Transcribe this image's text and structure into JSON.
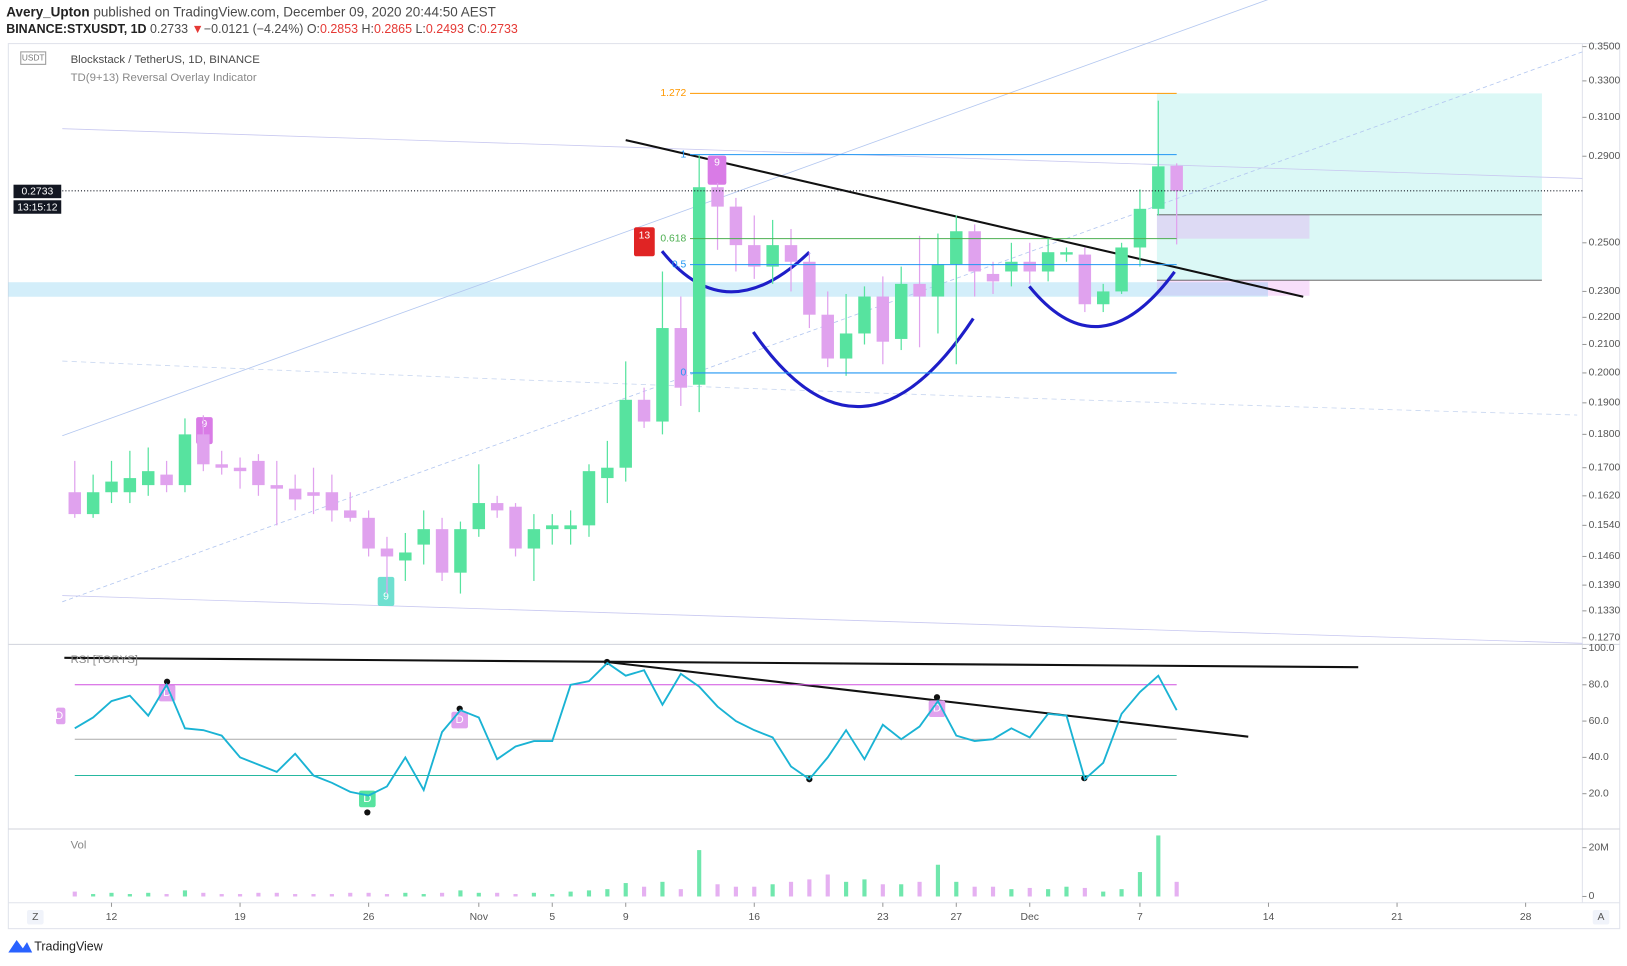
{
  "header": {
    "author": "Avery_Upton",
    "published": "published on TradingView.com, December 09, 2020 20:44:50 AEST",
    "symbol": "BINANCE:STXUSDT, 1D",
    "last": "0.2733",
    "arrow": "▼",
    "change": "−0.0121 (−4.24%)",
    "ohlc": [
      {
        "key": "O:",
        "val": "0.2853"
      },
      {
        "key": "H:",
        "val": "0.2865"
      },
      {
        "key": "L:",
        "val": "0.2493"
      },
      {
        "key": "C:",
        "val": "0.2733"
      }
    ]
  },
  "td_marks": [
    "9",
    "9",
    "13",
    "9"
  ],
  "rsi_marks": [
    "D",
    "D",
    "D",
    "D",
    "D"
  ],
  "footer": {
    "brand": "TradingView",
    "left_button": "Z",
    "right_button": "A"
  },
  "chart_data": [
    {
      "type": "candlestick",
      "title": "Blockstack / TetherUS, 1D, BINANCE",
      "subtitle": "TD(9+13) Reversal Overlay Indicator",
      "unit": "USDT",
      "log": true,
      "up_color": "#57e39f",
      "down_color": "#e0a2ee",
      "open": [
        0.163,
        0.157,
        0.163,
        0.163,
        0.165,
        0.168,
        0.165,
        0.18,
        0.171,
        0.17,
        0.172,
        0.165,
        0.164,
        0.163,
        0.163,
        0.158,
        0.156,
        0.148,
        0.145,
        0.149,
        0.153,
        0.142,
        0.153,
        0.16,
        0.159,
        0.148,
        0.153,
        0.153,
        0.154,
        0.167,
        0.17,
        0.191,
        0.184,
        0.216,
        0.196,
        0.275,
        0.266,
        0.249,
        0.24,
        0.249,
        0.242,
        0.221,
        0.205,
        0.214,
        0.228,
        0.212,
        0.233,
        0.228,
        0.241,
        0.255,
        0.237,
        0.238,
        0.242,
        0.238,
        0.245,
        0.245,
        0.225,
        0.23,
        0.248,
        0.265,
        0.2853
      ],
      "high": [
        0.172,
        0.168,
        0.172,
        0.175,
        0.176,
        0.172,
        0.185,
        0.186,
        0.175,
        0.173,
        0.174,
        0.172,
        0.168,
        0.17,
        0.168,
        0.163,
        0.158,
        0.151,
        0.152,
        0.158,
        0.156,
        0.155,
        0.171,
        0.162,
        0.16,
        0.157,
        0.157,
        0.158,
        0.171,
        0.178,
        0.204,
        0.195,
        0.238,
        0.228,
        0.291,
        0.277,
        0.27,
        0.262,
        0.26,
        0.256,
        0.246,
        0.23,
        0.229,
        0.232,
        0.236,
        0.24,
        0.253,
        0.254,
        0.262,
        0.258,
        0.242,
        0.25,
        0.25,
        0.252,
        0.248,
        0.248,
        0.233,
        0.25,
        0.274,
        0.319,
        0.2865
      ],
      "low": [
        0.156,
        0.156,
        0.16,
        0.16,
        0.162,
        0.163,
        0.163,
        0.169,
        0.168,
        0.164,
        0.162,
        0.154,
        0.158,
        0.157,
        0.155,
        0.155,
        0.146,
        0.137,
        0.14,
        0.144,
        0.14,
        0.137,
        0.151,
        0.156,
        0.146,
        0.14,
        0.149,
        0.149,
        0.151,
        0.16,
        0.166,
        0.182,
        0.18,
        0.189,
        0.187,
        0.247,
        0.238,
        0.235,
        0.233,
        0.23,
        0.216,
        0.202,
        0.199,
        0.21,
        0.203,
        0.208,
        0.209,
        0.214,
        0.203,
        0.228,
        0.229,
        0.232,
        0.233,
        0.234,
        0.242,
        0.222,
        0.222,
        0.229,
        0.24,
        0.262,
        0.2493
      ],
      "close": [
        0.157,
        0.163,
        0.166,
        0.167,
        0.169,
        0.165,
        0.18,
        0.171,
        0.17,
        0.169,
        0.165,
        0.164,
        0.161,
        0.162,
        0.158,
        0.156,
        0.148,
        0.146,
        0.147,
        0.153,
        0.142,
        0.153,
        0.16,
        0.158,
        0.148,
        0.153,
        0.154,
        0.154,
        0.169,
        0.17,
        0.191,
        0.184,
        0.216,
        0.195,
        0.275,
        0.266,
        0.249,
        0.24,
        0.249,
        0.242,
        0.221,
        0.205,
        0.214,
        0.228,
        0.211,
        0.233,
        0.228,
        0.241,
        0.255,
        0.238,
        0.234,
        0.242,
        0.238,
        0.246,
        0.246,
        0.225,
        0.23,
        0.248,
        0.265,
        0.285,
        0.2733
      ],
      "countdown": "13:15:12",
      "ylim": [
        0.1258,
        0.3518
      ],
      "yticks": [
        {
          "value": 0.35,
          "label": "0.3500"
        },
        {
          "value": 0.33,
          "label": "0.3300"
        },
        {
          "value": 0.31,
          "label": "0.3100"
        },
        {
          "value": 0.29,
          "label": "0.2900"
        },
        {
          "value": 0.25,
          "label": "0.2500"
        },
        {
          "value": 0.23,
          "label": "0.2300"
        },
        {
          "value": 0.22,
          "label": "0.2200"
        },
        {
          "value": 0.21,
          "label": "0.2100"
        },
        {
          "value": 0.2,
          "label": "0.2000"
        },
        {
          "value": 0.19,
          "label": "0.1900"
        },
        {
          "value": 0.18,
          "label": "0.1800"
        },
        {
          "value": 0.17,
          "label": "0.1700"
        },
        {
          "value": 0.162,
          "label": "0.1620"
        },
        {
          "value": 0.154,
          "label": "0.1540"
        },
        {
          "value": 0.146,
          "label": "0.1460"
        },
        {
          "value": 0.139,
          "label": "0.1390"
        },
        {
          "value": 0.133,
          "label": "0.1330"
        },
        {
          "value": 0.127,
          "label": "0.1270"
        }
      ],
      "xlim": [
        -0.68,
        82.09
      ],
      "xticks": [
        {
          "value": 2,
          "label": "12"
        },
        {
          "value": 9,
          "label": "19"
        },
        {
          "value": 16,
          "label": "26"
        },
        {
          "value": 22,
          "label": "Nov"
        },
        {
          "value": 26,
          "label": "5"
        },
        {
          "value": 30,
          "label": "9"
        },
        {
          "value": 37,
          "label": "16"
        },
        {
          "value": 44,
          "label": "23"
        },
        {
          "value": 48,
          "label": "27"
        },
        {
          "value": 52,
          "label": "Dec"
        },
        {
          "value": 58,
          "label": "7"
        },
        {
          "value": 65,
          "label": "14"
        },
        {
          "value": 72,
          "label": "21"
        },
        {
          "value": 79,
          "label": "28"
        }
      ],
      "fib": [
        {
          "label": "1.272",
          "value": 0.323,
          "color": "#ff9800"
        },
        {
          "label": "1",
          "value": 0.2908,
          "color": "#2196f3"
        },
        {
          "label": "0.618",
          "value": 0.2518,
          "color": "#4caf50"
        },
        {
          "label": "0.5",
          "value": 0.2408,
          "color": "#2196f3"
        },
        {
          "label": "0",
          "value": 0.2,
          "color": "#2196f3"
        }
      ]
    },
    {
      "type": "line",
      "title": "RSI [TORYS]",
      "color": "#1ab3d4",
      "values": [
        56,
        62,
        71,
        74,
        63,
        80,
        56,
        55,
        52,
        40,
        36,
        32,
        42,
        30,
        26,
        21,
        19,
        24,
        40,
        22,
        54,
        66,
        62,
        39,
        46,
        49,
        49,
        80,
        82,
        92,
        85,
        88,
        69,
        86,
        79,
        68,
        60,
        55,
        51,
        35,
        28,
        40,
        55,
        39,
        58,
        50,
        57,
        71,
        52,
        49,
        50,
        56,
        51,
        64,
        63,
        28,
        37,
        64,
        76,
        85,
        66
      ],
      "levels": [
        80,
        50,
        30
      ],
      "level_colors": [
        "#d050e0",
        "#aaaaaa",
        "#26b8a0"
      ],
      "ylim": [
        1.1,
        101.7
      ],
      "yticks": [
        {
          "value": 100,
          "label": "100.0"
        },
        {
          "value": 80,
          "label": "80.0"
        },
        {
          "value": 60,
          "label": "60.0"
        },
        {
          "value": 40,
          "label": "40.0"
        },
        {
          "value": 20,
          "label": "20.0"
        }
      ]
    },
    {
      "type": "bar",
      "title": "Vol",
      "values": [
        2000000,
        1000000,
        1500000,
        1000000,
        1500000,
        1000000,
        2500000,
        1500000,
        1000000,
        1000000,
        1500000,
        1500000,
        1000000,
        1000000,
        1000000,
        1500000,
        1500000,
        1000000,
        1500000,
        1000000,
        1500000,
        2500000,
        1500000,
        1500000,
        1000000,
        1500000,
        1000000,
        2000000,
        2500000,
        3000000,
        5500000,
        4000000,
        6000000,
        3000000,
        19000000,
        5000000,
        4000000,
        4000000,
        5000000,
        6000000,
        7000000,
        9000000,
        6000000,
        7000000,
        5000000,
        5000000,
        6000000,
        13000000,
        6000000,
        4000000,
        4000000,
        3000000,
        3500000,
        3000000,
        4000000,
        3500000,
        2000000,
        3000000,
        10000000,
        25000000,
        6000000
      ],
      "ylim": [
        -1700000,
        27200000
      ],
      "yticks": [
        {
          "value": 20000000,
          "label": "20M"
        },
        0
      ]
    }
  ]
}
